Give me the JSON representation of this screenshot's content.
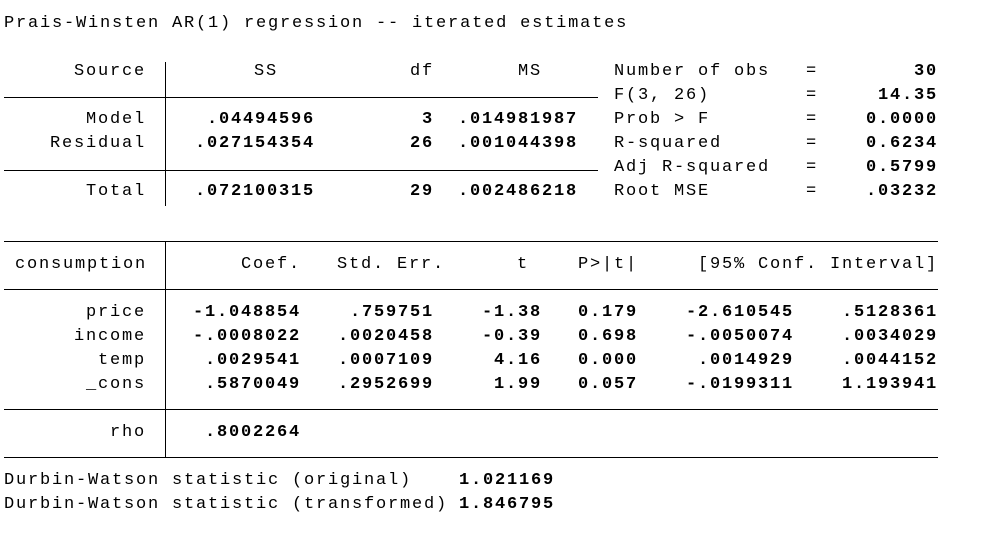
{
  "header": {
    "title": "Prais-Winsten AR(1) regression -- iterated estimates"
  },
  "anova": {
    "columns": [
      "Source",
      "SS",
      "df",
      "MS"
    ],
    "rows": [
      [
        "Model",
        ".04494596",
        "3",
        ".014981987"
      ],
      [
        "Residual",
        ".027154354",
        "26",
        ".001044398"
      ],
      [
        "Total",
        ".072100315",
        "29",
        ".002486218"
      ]
    ]
  },
  "stats": {
    "separator": "=",
    "rows": [
      [
        "Number of obs",
        "30"
      ],
      [
        "F(3, 26)",
        "14.35"
      ],
      [
        "Prob > F",
        "0.0000"
      ],
      [
        "R-squared",
        "0.6234"
      ],
      [
        "Adj R-squared",
        "0.5799"
      ],
      [
        "Root MSE",
        ".03232"
      ]
    ]
  },
  "coef_table": {
    "columns": [
      "consumption",
      "Coef.",
      "Std. Err.",
      "t",
      "P>|t|",
      "[95% Conf. Interval]"
    ],
    "rows": [
      [
        "price",
        "-1.048854",
        ".759751",
        "-1.38",
        "0.179",
        "-2.610545",
        ".5128361"
      ],
      [
        "income",
        "-.0008022",
        ".0020458",
        "-0.39",
        "0.698",
        "-.0050074",
        ".0034029"
      ],
      [
        "temp",
        ".0029541",
        ".0007109",
        "4.16",
        "0.000",
        ".0014929",
        ".0044152"
      ],
      [
        "_cons",
        ".5870049",
        ".2952699",
        "1.99",
        "0.057",
        "-.0199311",
        "1.193941"
      ]
    ],
    "rho": [
      "rho",
      ".8002264"
    ]
  },
  "footer": {
    "rows": [
      [
        "Durbin-Watson statistic (original)",
        "1.021169"
      ],
      [
        "Durbin-Watson statistic (transformed)",
        "1.846795"
      ]
    ]
  }
}
